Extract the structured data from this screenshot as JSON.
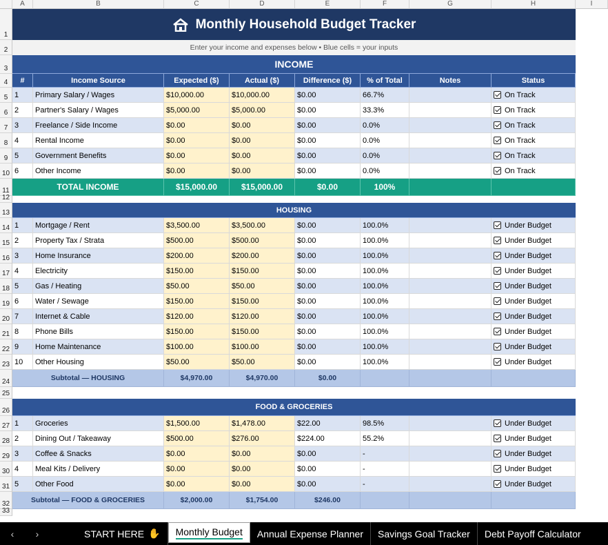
{
  "columns": [
    "A",
    "B",
    "C",
    "D",
    "E",
    "F",
    "G",
    "H",
    "I"
  ],
  "title": "Monthly Household Budget Tracker",
  "subtitle": "Enter your income and expenses below  •  Blue cells = your inputs",
  "income": {
    "section_label": "INCOME",
    "headers": [
      "#",
      "Income Source",
      "Expected ($)",
      "Actual ($)",
      "Difference ($)",
      "% of Total",
      "Notes",
      "Status"
    ],
    "rows": [
      [
        "1",
        "Primary Salary / Wages",
        "$10,000.00",
        "$10,000.00",
        "$0.00",
        "66.7%",
        "",
        "On Track"
      ],
      [
        "2",
        "Partner's Salary / Wages",
        "$5,000.00",
        "$5,000.00",
        "$0.00",
        "33.3%",
        "",
        "On Track"
      ],
      [
        "3",
        "Freelance / Side Income",
        "$0.00",
        "$0.00",
        "$0.00",
        "0.0%",
        "",
        "On Track"
      ],
      [
        "4",
        "Rental Income",
        "$0.00",
        "$0.00",
        "$0.00",
        "0.0%",
        "",
        "On Track"
      ],
      [
        "5",
        "Government Benefits",
        "$0.00",
        "$0.00",
        "$0.00",
        "0.0%",
        "",
        "On Track"
      ],
      [
        "6",
        "Other Income",
        "$0.00",
        "$0.00",
        "$0.00",
        "0.0%",
        "",
        "On Track"
      ]
    ],
    "total": {
      "label": "TOTAL INCOME",
      "expected": "$15,000.00",
      "actual": "$15,000.00",
      "difference": "$0.00",
      "pct": "100%"
    }
  },
  "housing": {
    "section_label": "HOUSING",
    "rows": [
      [
        "1",
        "Mortgage / Rent",
        "$3,500.00",
        "$3,500.00",
        "$0.00",
        "100.0%",
        "",
        "Under Budget"
      ],
      [
        "2",
        "Property Tax / Strata",
        "$500.00",
        "$500.00",
        "$0.00",
        "100.0%",
        "",
        "Under Budget"
      ],
      [
        "3",
        "Home Insurance",
        "$200.00",
        "$200.00",
        "$0.00",
        "100.0%",
        "",
        "Under Budget"
      ],
      [
        "4",
        "Electricity",
        "$150.00",
        "$150.00",
        "$0.00",
        "100.0%",
        "",
        "Under Budget"
      ],
      [
        "5",
        "Gas / Heating",
        "$50.00",
        "$50.00",
        "$0.00",
        "100.0%",
        "",
        "Under Budget"
      ],
      [
        "6",
        "Water / Sewage",
        "$150.00",
        "$150.00",
        "$0.00",
        "100.0%",
        "",
        "Under Budget"
      ],
      [
        "7",
        "Internet & Cable",
        "$120.00",
        "$120.00",
        "$0.00",
        "100.0%",
        "",
        "Under Budget"
      ],
      [
        "8",
        "Phone Bills",
        "$150.00",
        "$150.00",
        "$0.00",
        "100.0%",
        "",
        "Under Budget"
      ],
      [
        "9",
        "Home Maintenance",
        "$100.00",
        "$100.00",
        "$0.00",
        "100.0%",
        "",
        "Under Budget"
      ],
      [
        "10",
        "Other Housing",
        "$50.00",
        "$50.00",
        "$0.00",
        "100.0%",
        "",
        "Under Budget"
      ]
    ],
    "subtotal": {
      "label": "Subtotal — HOUSING",
      "expected": "$4,970.00",
      "actual": "$4,970.00",
      "difference": "$0.00"
    }
  },
  "food": {
    "section_label": "FOOD & GROCERIES",
    "rows": [
      [
        "1",
        "Groceries",
        "$1,500.00",
        "$1,478.00",
        "$22.00",
        "98.5%",
        "",
        "Under Budget"
      ],
      [
        "2",
        "Dining Out / Takeaway",
        "$500.00",
        "$276.00",
        "$224.00",
        "55.2%",
        "",
        "Under Budget"
      ],
      [
        "3",
        "Coffee & Snacks",
        "$0.00",
        "$0.00",
        "$0.00",
        "-",
        "",
        "Under Budget"
      ],
      [
        "4",
        "Meal Kits / Delivery",
        "$0.00",
        "$0.00",
        "$0.00",
        "-",
        "",
        "Under Budget"
      ],
      [
        "5",
        "Other Food",
        "$0.00",
        "$0.00",
        "$0.00",
        "-",
        "",
        "Under Budget"
      ]
    ],
    "subtotal": {
      "label": "Subtotal — FOOD & GROCERIES",
      "expected": "$2,000.00",
      "actual": "$1,754.00",
      "difference": "$246.00"
    }
  },
  "tabs": [
    "START HERE",
    "Monthly Budget",
    "Annual Expense Planner",
    "Savings Goal Tracker",
    "Debt Payoff Calculator"
  ],
  "active_tab": "Monthly Budget",
  "colors": {
    "title_bg": "#1f3864",
    "header_bg": "#2f5597",
    "total_bg": "#16a085",
    "input_bg": "#fff2cc",
    "row_alt": "#dae3f3",
    "subtotal_bg": "#b4c7e7"
  }
}
